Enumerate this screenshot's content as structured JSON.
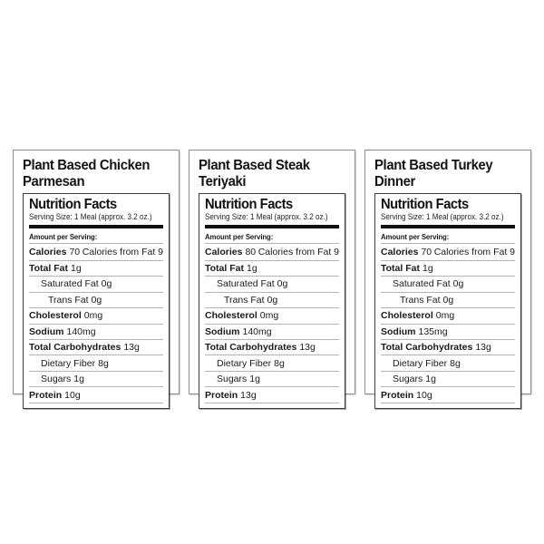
{
  "colors": {
    "background": "#ffffff",
    "text": "#1a1a1a",
    "thick_bar": "#101010",
    "outer_border": "#8f8f8f",
    "inner_border": "#3f3f3f",
    "row_separator": "#b4b4b4"
  },
  "labels": [
    {
      "title_lines": [
        "Plant Based Chicken",
        "Parmesan"
      ],
      "nutrition": {
        "heading": "Nutrition Facts",
        "serving_size": "Serving Size: 1 Meal (approx. 3.2 oz.)",
        "amount_per_serving": "Amount per Serving:",
        "calories_label": "Calories",
        "calories_value": "70",
        "calories_from_fat": "Calories from Fat 9",
        "rows": [
          {
            "label": "Total Fat",
            "value": "1g",
            "bold": true,
            "indent": 0
          },
          {
            "label": "Saturated Fat",
            "value": "0g",
            "bold": false,
            "indent": 1
          },
          {
            "label": "Trans Fat",
            "value": "0g",
            "bold": false,
            "indent": 2
          },
          {
            "label": "Cholesterol",
            "value": "0mg",
            "bold": true,
            "indent": 0
          },
          {
            "label": "Sodium",
            "value": "140mg",
            "bold": true,
            "indent": 0
          },
          {
            "label": "Total Carbohydrates",
            "value": "13g",
            "bold": true,
            "indent": 0
          },
          {
            "label": "Dietary Fiber",
            "value": "8g",
            "bold": false,
            "indent": 1
          },
          {
            "label": "Sugars",
            "value": "1g",
            "bold": false,
            "indent": 1
          },
          {
            "label": "Protein",
            "value": "10g",
            "bold": true,
            "indent": 0
          }
        ]
      }
    },
    {
      "title_lines": [
        "Plant Based Steak",
        "Teriyaki"
      ],
      "nutrition": {
        "heading": "Nutrition Facts",
        "serving_size": "Serving Size: 1 Meal (approx. 3.2 oz.)",
        "amount_per_serving": "Amount per Serving:",
        "calories_label": "Calories",
        "calories_value": "80",
        "calories_from_fat": "Calories from Fat 9",
        "rows": [
          {
            "label": "Total Fat",
            "value": "1g",
            "bold": true,
            "indent": 0
          },
          {
            "label": "Saturated Fat",
            "value": "0g",
            "bold": false,
            "indent": 1
          },
          {
            "label": "Trans Fat",
            "value": "0g",
            "bold": false,
            "indent": 2
          },
          {
            "label": "Cholesterol",
            "value": "0mg",
            "bold": true,
            "indent": 0
          },
          {
            "label": "Sodium",
            "value": "140mg",
            "bold": true,
            "indent": 0
          },
          {
            "label": "Total Carbohydrates",
            "value": "13g",
            "bold": true,
            "indent": 0
          },
          {
            "label": "Dietary Fiber",
            "value": "8g",
            "bold": false,
            "indent": 1
          },
          {
            "label": "Sugars",
            "value": "1g",
            "bold": false,
            "indent": 1
          },
          {
            "label": "Protein",
            "value": "13g",
            "bold": true,
            "indent": 0
          }
        ]
      }
    },
    {
      "title_lines": [
        "Plant Based Turkey",
        "Dinner"
      ],
      "nutrition": {
        "heading": "Nutrition Facts",
        "serving_size": "Serving Size: 1 Meal (approx. 3.2 oz.)",
        "amount_per_serving": "Amount per Serving:",
        "calories_label": "Calories",
        "calories_value": "70",
        "calories_from_fat": "Calories from Fat 9",
        "rows": [
          {
            "label": "Total Fat",
            "value": "1g",
            "bold": true,
            "indent": 0
          },
          {
            "label": "Saturated Fat",
            "value": "0g",
            "bold": false,
            "indent": 1
          },
          {
            "label": "Trans Fat",
            "value": "0g",
            "bold": false,
            "indent": 2
          },
          {
            "label": "Cholesterol",
            "value": "0mg",
            "bold": true,
            "indent": 0
          },
          {
            "label": "Sodium",
            "value": "135mg",
            "bold": true,
            "indent": 0
          },
          {
            "label": "Total Carbohydrates",
            "value": "13g",
            "bold": true,
            "indent": 0
          },
          {
            "label": "Dietary Fiber",
            "value": "8g",
            "bold": false,
            "indent": 1
          },
          {
            "label": "Sugars",
            "value": "1g",
            "bold": false,
            "indent": 1
          },
          {
            "label": "Protein",
            "value": "10g",
            "bold": true,
            "indent": 0
          }
        ]
      }
    }
  ]
}
